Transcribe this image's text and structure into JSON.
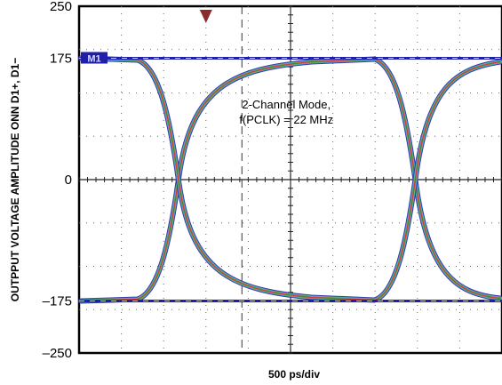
{
  "chart_data": {
    "type": "line",
    "title": "",
    "xlabel": "500 ps/div",
    "ylabel": "OUTPPUT VOLTAGE AMPLITUDE ONN D1+, D1−",
    "ylim": [
      -250,
      250
    ],
    "y_ticks": [
      250,
      175,
      0,
      -175,
      -250
    ],
    "y_tick_labels": [
      "250",
      "175",
      "0",
      "–175",
      "–250"
    ],
    "x_divisions": 10,
    "grid": true,
    "marker_label": "M1",
    "annotation_lines": [
      "2-Channel Mode,",
      "f(PCLK) = 22 MHz"
    ],
    "crossing_level": 0,
    "crossings_div": [
      2.35,
      7.95
    ],
    "levels": {
      "high": 175,
      "low": -175
    },
    "colors": {
      "trace_outer": "#3b3ba8",
      "trace_mid": "#4aa7c9",
      "trace_red": "#d23a3a",
      "trace_green": "#62b043",
      "marker_line": "#1f1faa",
      "trigger": "#8b2b2b",
      "grid": "#666666"
    }
  }
}
